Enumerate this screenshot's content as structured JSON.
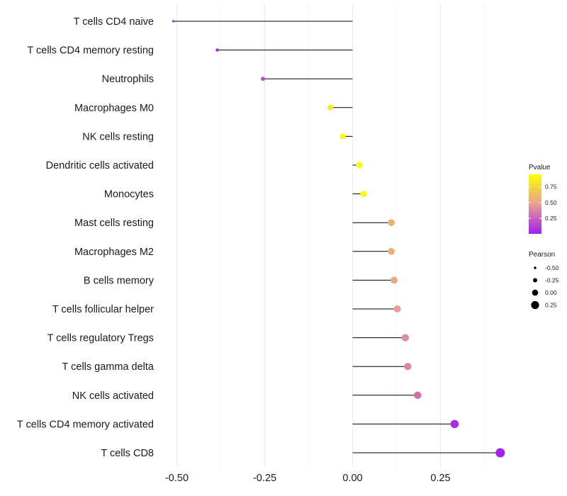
{
  "chart_data": {
    "type": "lollipop",
    "xlabel": "",
    "ylabel": "",
    "xlim": [
      -0.52,
      0.44
    ],
    "x_ticks": [
      -0.5,
      -0.25,
      0.0,
      0.25
    ],
    "x_tick_labels": [
      "-0.50",
      "-0.25",
      "0.00",
      "0.25"
    ],
    "grid": true,
    "categories": [
      "T cells CD4 naive",
      "T cells CD4 memory resting",
      "Neutrophils",
      "Macrophages M0",
      "NK cells resting",
      "Dendritic cells activated",
      "Monocytes",
      "Mast cells resting",
      "Macrophages M2",
      "B cells memory",
      "T cells follicular helper",
      "T cells regulatory  Tregs",
      "T cells gamma delta",
      "NK cells activated",
      "T cells CD4 memory activated",
      "T cells CD8"
    ],
    "pearson": [
      -0.51,
      -0.385,
      -0.255,
      -0.063,
      -0.028,
      0.019,
      0.031,
      0.11,
      0.11,
      0.118,
      0.127,
      0.15,
      0.157,
      0.185,
      0.29,
      0.42
    ],
    "pvalue": [
      0.02,
      0.05,
      0.18,
      0.83,
      0.92,
      0.95,
      0.93,
      0.55,
      0.55,
      0.52,
      0.47,
      0.4,
      0.38,
      0.3,
      0.05,
      0.01
    ],
    "legend": {
      "color": {
        "title": "Pvalue",
        "ticks": [
          0.25,
          0.5,
          0.75
        ],
        "tick_labels": [
          "0.25",
          "0.50",
          "0.75"
        ],
        "range": [
          0.0,
          0.95
        ],
        "low_color": "#a020f0",
        "mid_color": "#e8a090",
        "high_color": "#ffff00"
      },
      "size": {
        "title": "Pearson",
        "values": [
          -0.5,
          -0.25,
          0.0,
          0.25
        ],
        "labels": [
          "-0.50",
          "-0.25",
          "0.00",
          "0.25"
        ]
      },
      "placement": "right"
    }
  }
}
